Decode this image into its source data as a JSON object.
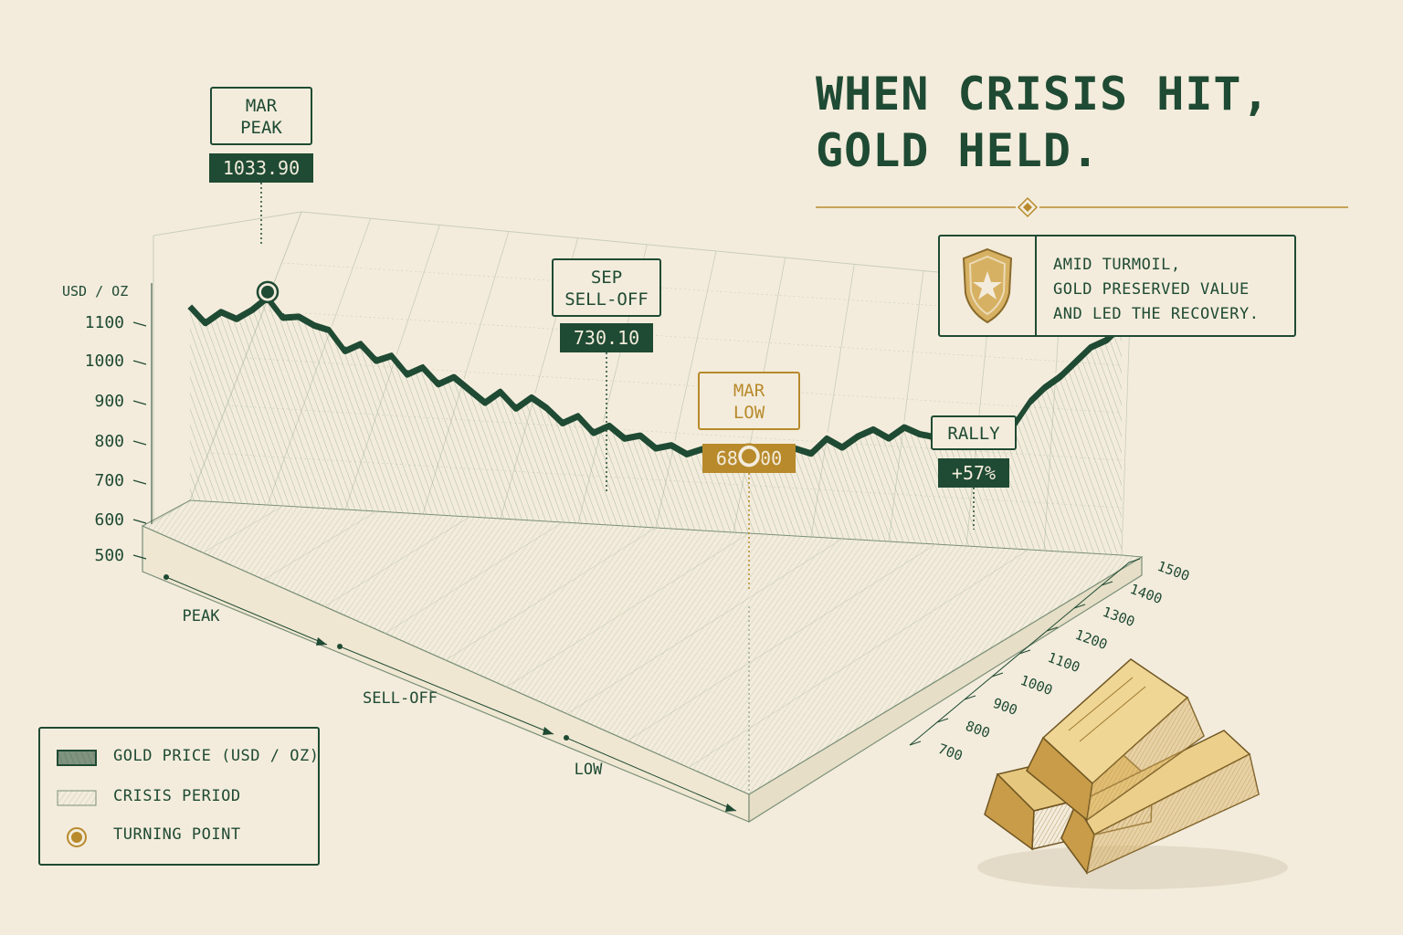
{
  "title": {
    "line1": "WHEN CRISIS HIT,",
    "line2": "GOLD HELD."
  },
  "note": {
    "lines": [
      "AMID TURMOIL,",
      "GOLD PRESERVED VALUE",
      "AND LED THE RECOVERY."
    ],
    "icon": "shield-star-icon"
  },
  "legend": [
    {
      "label": "GOLD PRICE (USD / OZ)",
      "swatch": "green-ribbon"
    },
    {
      "label": "CRISIS PERIOD",
      "swatch": "hatched-area"
    },
    {
      "label": "TURNING POINT",
      "swatch": "gold-dot"
    }
  ],
  "colors": {
    "background": "#f3ecdc",
    "green": "#1f4a33",
    "gold": "#b88a2c",
    "grid": "#c9cdb8"
  },
  "chart_data": {
    "type": "line",
    "title": "WHEN CRISIS HIT, GOLD HELD.",
    "ylabel": "USD / OZ",
    "y_ticks": [
      500,
      600,
      700,
      800,
      900,
      1000,
      1100
    ],
    "depth_ticks": [
      1500,
      1400,
      1300,
      1200,
      1100,
      1000,
      900,
      800,
      700
    ],
    "phases": [
      "PEAK",
      "SELL-OFF",
      "LOW"
    ],
    "series": [
      {
        "name": "GOLD PRICE (USD / OZ)",
        "values": [
          1000,
          960,
          990,
          975,
          1000,
          1033.9,
          985,
          990,
          970,
          960,
          910,
          930,
          890,
          905,
          860,
          880,
          840,
          860,
          830,
          800,
          830,
          790,
          820,
          795,
          760,
          780,
          740,
          760,
          730.1,
          740,
          710,
          720,
          700,
          715,
          690,
          700,
          681,
          700,
          710,
          730,
          720,
          760,
          740,
          770,
          790,
          770,
          800,
          785,
          780,
          790,
          760,
          770,
          780,
          820,
          880,
          920,
          950,
          990,
          1030,
          1050,
          1090
        ]
      }
    ],
    "annotations": [
      {
        "label": [
          "MAR",
          "PEAK"
        ],
        "value": "1033.90",
        "index": 5,
        "style": "green"
      },
      {
        "label": [
          "SEP",
          "SELL-OFF"
        ],
        "value": "730.10",
        "index": 28,
        "style": "green"
      },
      {
        "label": [
          "MAR",
          "LOW"
        ],
        "value": "681.00",
        "index": 36,
        "style": "gold"
      },
      {
        "label": [
          "RALLY"
        ],
        "value": "+57%",
        "index": 52,
        "style": "green"
      }
    ],
    "turning_points": [
      5,
      36
    ],
    "grid": true
  }
}
